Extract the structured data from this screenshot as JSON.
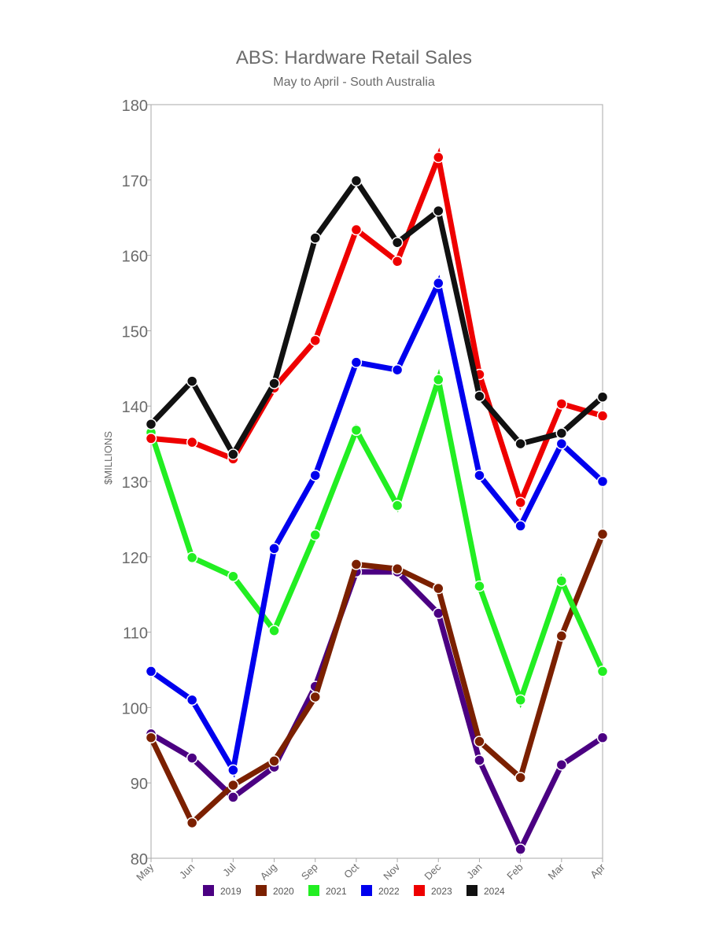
{
  "chart_data": {
    "type": "line",
    "title": "ABS: Hardware Retail Sales",
    "subtitle": "May to April - South Australia",
    "xlabel": "",
    "ylabel": "$MILLIONS",
    "categories": [
      "May",
      "Jun",
      "Jul",
      "Aug",
      "Sep",
      "Oct",
      "Nov",
      "Dec",
      "Jan",
      "Feb",
      "Mar",
      "Apr"
    ],
    "ylim": [
      80,
      180
    ],
    "yticks": [
      80,
      90,
      100,
      110,
      120,
      130,
      140,
      150,
      160,
      170,
      180
    ],
    "grid": false,
    "legend_position": "bottom",
    "series": [
      {
        "name": "2019",
        "color": "#4b0082",
        "values": [
          96.5,
          93.3,
          88.1,
          92.1,
          102.8,
          118.0,
          118.0,
          112.5,
          93.0,
          81.2,
          92.4,
          96.0
        ]
      },
      {
        "name": "2020",
        "color": "#7b2000",
        "values": [
          96.0,
          84.7,
          89.7,
          92.9,
          101.4,
          119.0,
          118.4,
          115.8,
          95.5,
          90.7,
          109.5,
          123.0
        ]
      },
      {
        "name": "2021",
        "color": "#22ee22",
        "values": [
          136.5,
          119.9,
          117.4,
          110.2,
          122.9,
          136.8,
          126.8,
          143.5,
          116.1,
          101.0,
          116.8,
          104.8
        ]
      },
      {
        "name": "2022",
        "color": "#0000ee",
        "values": [
          104.8,
          101.0,
          91.7,
          121.1,
          130.8,
          145.8,
          144.8,
          156.3,
          130.8,
          124.1,
          135.0,
          130.0
        ]
      },
      {
        "name": "2023",
        "color": "#ee0000",
        "values": [
          135.7,
          135.2,
          133.0,
          142.4,
          148.7,
          163.4,
          159.2,
          173.0,
          144.2,
          127.2,
          140.3,
          138.7
        ]
      },
      {
        "name": "2024",
        "color": "#111111",
        "values": [
          137.6,
          143.3,
          133.6,
          143.0,
          162.3,
          169.9,
          161.7,
          165.9,
          141.3,
          135.0,
          136.4,
          141.2
        ]
      }
    ]
  }
}
